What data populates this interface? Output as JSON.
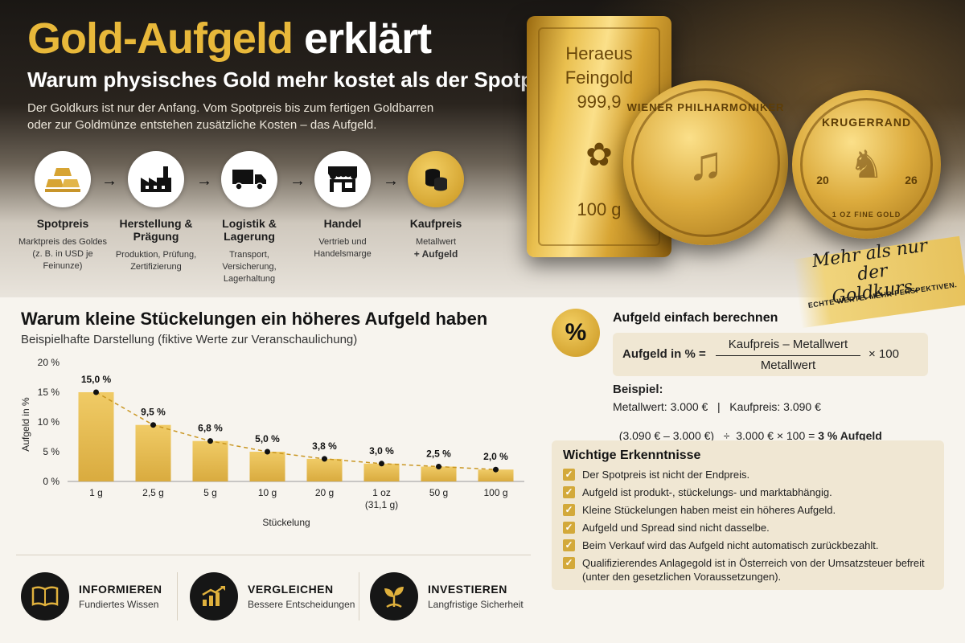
{
  "header": {
    "title_gold": "Gold-Aufgeld",
    "title_white": "erklärt",
    "subtitle": "Warum physisches Gold mehr kostet als der Spotpreis",
    "intro_line1": "Der Goldkurs ist nur der Anfang. Vom Spotpreis bis zum fertigen Goldbarren",
    "intro_line2": "oder zur Goldmünze entstehen zusätzliche Kosten – das Aufgeld."
  },
  "steps": [
    {
      "icon": "gold-bars-icon",
      "name": "Spotpreis",
      "desc": "Marktpreis des Goldes (z. B. in USD je Feinunze)"
    },
    {
      "icon": "factory-icon",
      "name": "Herstellung & Prägung",
      "desc": "Produktion, Prüfung, Zertifizierung"
    },
    {
      "icon": "truck-icon",
      "name": "Logistik & Lagerung",
      "desc": "Transport, Versicherung, Lagerhaltung"
    },
    {
      "icon": "shop-icon",
      "name": "Handel",
      "desc": "Vertrieb und Handelsmarge"
    },
    {
      "icon": "coins-stack-icon",
      "name": "Kaufpreis",
      "desc": "Metallwert",
      "desc_bold": "+ Aufgeld"
    }
  ],
  "products": {
    "bar_line1": "Heraeus",
    "bar_line2": "Feingold",
    "bar_line3": "999,9",
    "bar_weight": "100 g",
    "coin1_text": "WIENER PHILHARMONIKER",
    "coin2_text": "KRUGERRAND",
    "coin2_left": "20",
    "coin2_right": "26",
    "coin2_bottom": "1 OZ FINE GOLD"
  },
  "tagline": {
    "line1": "Mehr als nur",
    "line2": "der Goldkurs.",
    "sub": "ECHTE WERTE. MEHR PERSPEKTIVEN."
  },
  "chart_section": {
    "title": "Warum kleine Stückelungen ein höheres Aufgeld haben",
    "subtitle": "Beispielhafte Darstellung (fiktive Werte zur Veranschaulichung)"
  },
  "chart_data": {
    "type": "bar",
    "categories": [
      "1 g",
      "2,5 g",
      "5 g",
      "10 g",
      "20 g",
      "1 oz",
      "50 g",
      "100 g"
    ],
    "category_sublabels": [
      "",
      "",
      "",
      "",
      "",
      "(31,1 g)",
      "",
      ""
    ],
    "values": [
      15.0,
      9.5,
      6.8,
      5.0,
      3.8,
      3.0,
      2.5,
      2.0
    ],
    "data_labels": [
      "15,0 %",
      "9,5 %",
      "6,8 %",
      "5,0 %",
      "3,8 %",
      "3,0 %",
      "2,5 %",
      "2,0 %"
    ],
    "y_ticks": [
      "0 %",
      "5 %",
      "10 %",
      "15 %",
      "20 %"
    ],
    "xlabel": "Stückelung",
    "ylabel": "Aufgeld in %",
    "ylim": [
      0,
      20
    ],
    "grid": false,
    "trend_line": true,
    "colors": {
      "bar_top": "#f0cb66",
      "bar_bottom": "#d9ab3f",
      "trend": "#c99622"
    }
  },
  "calculator": {
    "title": "Aufgeld einfach berechnen",
    "lhs": "Aufgeld in % =",
    "numerator": "Kaufpreis – Metallwert",
    "denominator": "Metallwert",
    "multiplier": "× 100",
    "example_label": "Beispiel:",
    "example_line1": "Metallwert: 3.000 €   |   Kaufpreis: 3.090 €",
    "example_line2_calc": "(3.090 € – 3.000 €)   ÷  3.000 € × 100 = ",
    "example_line2_result": "3 % Aufgeld"
  },
  "insights": {
    "title": "Wichtige Erkenntnisse",
    "items": [
      "Der Spotpreis ist nicht der Endpreis.",
      "Aufgeld ist produkt-, stückelungs- und marktabhängig.",
      "Kleine Stückelungen haben meist ein höheres Aufgeld.",
      "Aufgeld und Spread sind nicht dasselbe.",
      "Beim Verkauf wird das Aufgeld nicht automatisch zurückbezahlt.",
      "Qualifizierendes Anlagegold ist in Österreich von der Umsatzsteuer befreit (unter den gesetzlichen Voraussetzungen)."
    ]
  },
  "footer": [
    {
      "icon": "book-icon",
      "title": "INFORMIEREN",
      "sub": "Fundiertes Wissen"
    },
    {
      "icon": "growth-chart-icon",
      "title": "VERGLEICHEN",
      "sub": "Bessere Entscheidungen"
    },
    {
      "icon": "plant-icon",
      "title": "INVESTIEREN",
      "sub": "Langfristige Sicherheit"
    }
  ],
  "colors": {
    "gold": "#e8b83a",
    "dark": "#161616",
    "panel": "#f0e7d3"
  }
}
